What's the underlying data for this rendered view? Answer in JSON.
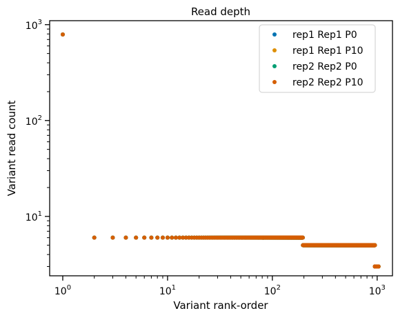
{
  "chart_data": {
    "type": "scatter",
    "title": "Read depth",
    "xlabel": "Variant rank-order",
    "ylabel": "Variant read count",
    "xscale": "log",
    "yscale": "log",
    "xlim": [
      0.75,
      1400
    ],
    "ylim": [
      2.4,
      1100
    ],
    "xticks": [
      {
        "base": "10",
        "exp": "0",
        "value": 1
      },
      {
        "base": "10",
        "exp": "1",
        "value": 10
      },
      {
        "base": "10",
        "exp": "2",
        "value": 100
      },
      {
        "base": "10",
        "exp": "3",
        "value": 1000
      }
    ],
    "yticks": [
      {
        "base": "10",
        "exp": "1",
        "value": 10
      },
      {
        "base": "10",
        "exp": "2",
        "value": 100
      },
      {
        "base": "10",
        "exp": "3",
        "value": 1000
      }
    ],
    "grid": false,
    "legend_position": "top-right",
    "series": [
      {
        "name": "rep1 Rep1 P0",
        "color": "#0173b2"
      },
      {
        "name": "rep1 Rep1 P10",
        "color": "#de8f05"
      },
      {
        "name": "rep2 Rep2 P0",
        "color": "#029e73"
      },
      {
        "name": "rep2 Rep2 P10",
        "color": "#d55e00"
      }
    ],
    "points": [
      {
        "rank_from": 1,
        "rank_to": 1,
        "read_count": 790
      },
      {
        "rank_from": 2,
        "rank_to": 195,
        "read_count": 6
      },
      {
        "rank_from": 196,
        "rank_to": 950,
        "read_count": 5
      },
      {
        "rank_from": 951,
        "rank_to": 1030,
        "read_count": 3
      }
    ]
  }
}
